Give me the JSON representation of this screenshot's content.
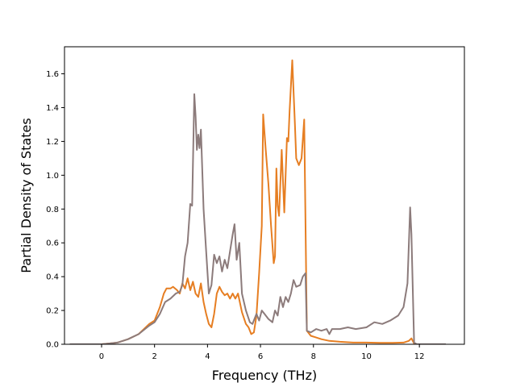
{
  "chart_data": {
    "type": "line",
    "title": "",
    "xlabel": "Frequency (THz)",
    "ylabel": "Partial Density of States",
    "xlim": [
      -1.4,
      13.7
    ],
    "ylim": [
      0,
      1.76
    ],
    "xticks": [
      0,
      2,
      4,
      6,
      8,
      10,
      12
    ],
    "yticks": [
      0.0,
      0.2,
      0.4,
      0.6,
      0.8,
      1.0,
      1.2,
      1.4,
      1.6
    ],
    "ytick_labels": [
      "0.0",
      "0.2",
      "0.4",
      "0.6",
      "0.8",
      "1.0",
      "1.2",
      "1.4",
      "1.6"
    ],
    "grid": false,
    "legend": "none",
    "series": [
      {
        "color": "#e67e22",
        "points": [
          [
            -1.2,
            0.0
          ],
          [
            0.0,
            0.0
          ],
          [
            0.3,
            0.005
          ],
          [
            0.6,
            0.01
          ],
          [
            1.0,
            0.03
          ],
          [
            1.4,
            0.06
          ],
          [
            1.8,
            0.12
          ],
          [
            2.0,
            0.14
          ],
          [
            2.2,
            0.22
          ],
          [
            2.35,
            0.3
          ],
          [
            2.45,
            0.33
          ],
          [
            2.6,
            0.33
          ],
          [
            2.7,
            0.34
          ],
          [
            2.85,
            0.32
          ],
          [
            2.95,
            0.3
          ],
          [
            3.05,
            0.36
          ],
          [
            3.15,
            0.33
          ],
          [
            3.25,
            0.39
          ],
          [
            3.35,
            0.32
          ],
          [
            3.45,
            0.37
          ],
          [
            3.55,
            0.3
          ],
          [
            3.65,
            0.28
          ],
          [
            3.75,
            0.36
          ],
          [
            3.85,
            0.25
          ],
          [
            3.95,
            0.18
          ],
          [
            4.05,
            0.12
          ],
          [
            4.15,
            0.1
          ],
          [
            4.25,
            0.18
          ],
          [
            4.35,
            0.3
          ],
          [
            4.45,
            0.34
          ],
          [
            4.55,
            0.31
          ],
          [
            4.65,
            0.29
          ],
          [
            4.75,
            0.3
          ],
          [
            4.85,
            0.27
          ],
          [
            4.95,
            0.3
          ],
          [
            5.05,
            0.27
          ],
          [
            5.15,
            0.3
          ],
          [
            5.3,
            0.19
          ],
          [
            5.45,
            0.12
          ],
          [
            5.55,
            0.1
          ],
          [
            5.65,
            0.06
          ],
          [
            5.75,
            0.07
          ],
          [
            5.85,
            0.17
          ],
          [
            5.95,
            0.42
          ],
          [
            6.05,
            0.7
          ],
          [
            6.1,
            1.36
          ],
          [
            6.2,
            1.15
          ],
          [
            6.3,
            0.95
          ],
          [
            6.4,
            0.7
          ],
          [
            6.5,
            0.48
          ],
          [
            6.55,
            0.52
          ],
          [
            6.6,
            1.04
          ],
          [
            6.65,
            0.82
          ],
          [
            6.7,
            0.76
          ],
          [
            6.8,
            1.15
          ],
          [
            6.9,
            0.78
          ],
          [
            7.0,
            1.22
          ],
          [
            7.05,
            1.2
          ],
          [
            7.1,
            1.38
          ],
          [
            7.2,
            1.68
          ],
          [
            7.3,
            1.3
          ],
          [
            7.35,
            1.1
          ],
          [
            7.45,
            1.06
          ],
          [
            7.55,
            1.1
          ],
          [
            7.65,
            1.33
          ],
          [
            7.75,
            0.08
          ],
          [
            7.9,
            0.05
          ],
          [
            8.1,
            0.04
          ],
          [
            8.3,
            0.03
          ],
          [
            8.6,
            0.02
          ],
          [
            9.0,
            0.015
          ],
          [
            9.5,
            0.01
          ],
          [
            10.0,
            0.01
          ],
          [
            10.5,
            0.008
          ],
          [
            11.0,
            0.008
          ],
          [
            11.4,
            0.01
          ],
          [
            11.6,
            0.02
          ],
          [
            11.7,
            0.035
          ],
          [
            11.8,
            0.005
          ],
          [
            11.9,
            0.0
          ],
          [
            13.0,
            0.0
          ]
        ]
      },
      {
        "color": "#8c7b7b",
        "points": [
          [
            -1.2,
            0.0
          ],
          [
            0.0,
            0.0
          ],
          [
            0.3,
            0.005
          ],
          [
            0.6,
            0.01
          ],
          [
            1.0,
            0.03
          ],
          [
            1.4,
            0.06
          ],
          [
            1.8,
            0.11
          ],
          [
            2.0,
            0.13
          ],
          [
            2.2,
            0.18
          ],
          [
            2.4,
            0.25
          ],
          [
            2.6,
            0.27
          ],
          [
            2.8,
            0.3
          ],
          [
            2.95,
            0.31
          ],
          [
            3.05,
            0.35
          ],
          [
            3.15,
            0.52
          ],
          [
            3.25,
            0.6
          ],
          [
            3.35,
            0.83
          ],
          [
            3.42,
            0.82
          ],
          [
            3.5,
            1.48
          ],
          [
            3.55,
            1.35
          ],
          [
            3.6,
            1.15
          ],
          [
            3.65,
            1.24
          ],
          [
            3.7,
            1.16
          ],
          [
            3.75,
            1.27
          ],
          [
            3.85,
            0.8
          ],
          [
            3.95,
            0.55
          ],
          [
            4.05,
            0.3
          ],
          [
            4.15,
            0.35
          ],
          [
            4.25,
            0.53
          ],
          [
            4.35,
            0.48
          ],
          [
            4.45,
            0.52
          ],
          [
            4.55,
            0.43
          ],
          [
            4.65,
            0.5
          ],
          [
            4.75,
            0.45
          ],
          [
            4.85,
            0.55
          ],
          [
            4.95,
            0.65
          ],
          [
            5.02,
            0.71
          ],
          [
            5.1,
            0.5
          ],
          [
            5.2,
            0.6
          ],
          [
            5.3,
            0.3
          ],
          [
            5.45,
            0.2
          ],
          [
            5.6,
            0.13
          ],
          [
            5.7,
            0.12
          ],
          [
            5.85,
            0.18
          ],
          [
            5.95,
            0.14
          ],
          [
            6.05,
            0.2
          ],
          [
            6.15,
            0.18
          ],
          [
            6.3,
            0.15
          ],
          [
            6.45,
            0.13
          ],
          [
            6.55,
            0.2
          ],
          [
            6.65,
            0.17
          ],
          [
            6.75,
            0.28
          ],
          [
            6.85,
            0.22
          ],
          [
            6.95,
            0.28
          ],
          [
            7.05,
            0.25
          ],
          [
            7.15,
            0.3
          ],
          [
            7.25,
            0.38
          ],
          [
            7.35,
            0.34
          ],
          [
            7.5,
            0.35
          ],
          [
            7.6,
            0.4
          ],
          [
            7.7,
            0.42
          ],
          [
            7.75,
            0.08
          ],
          [
            7.9,
            0.07
          ],
          [
            8.1,
            0.09
          ],
          [
            8.3,
            0.08
          ],
          [
            8.5,
            0.09
          ],
          [
            8.6,
            0.06
          ],
          [
            8.7,
            0.09
          ],
          [
            9.0,
            0.09
          ],
          [
            9.3,
            0.1
          ],
          [
            9.6,
            0.09
          ],
          [
            10.0,
            0.1
          ],
          [
            10.3,
            0.13
          ],
          [
            10.6,
            0.12
          ],
          [
            10.9,
            0.14
          ],
          [
            11.2,
            0.17
          ],
          [
            11.4,
            0.22
          ],
          [
            11.55,
            0.36
          ],
          [
            11.65,
            0.81
          ],
          [
            11.7,
            0.65
          ],
          [
            11.8,
            0.01
          ],
          [
            11.9,
            0.0
          ],
          [
            13.0,
            0.0
          ]
        ]
      }
    ]
  }
}
